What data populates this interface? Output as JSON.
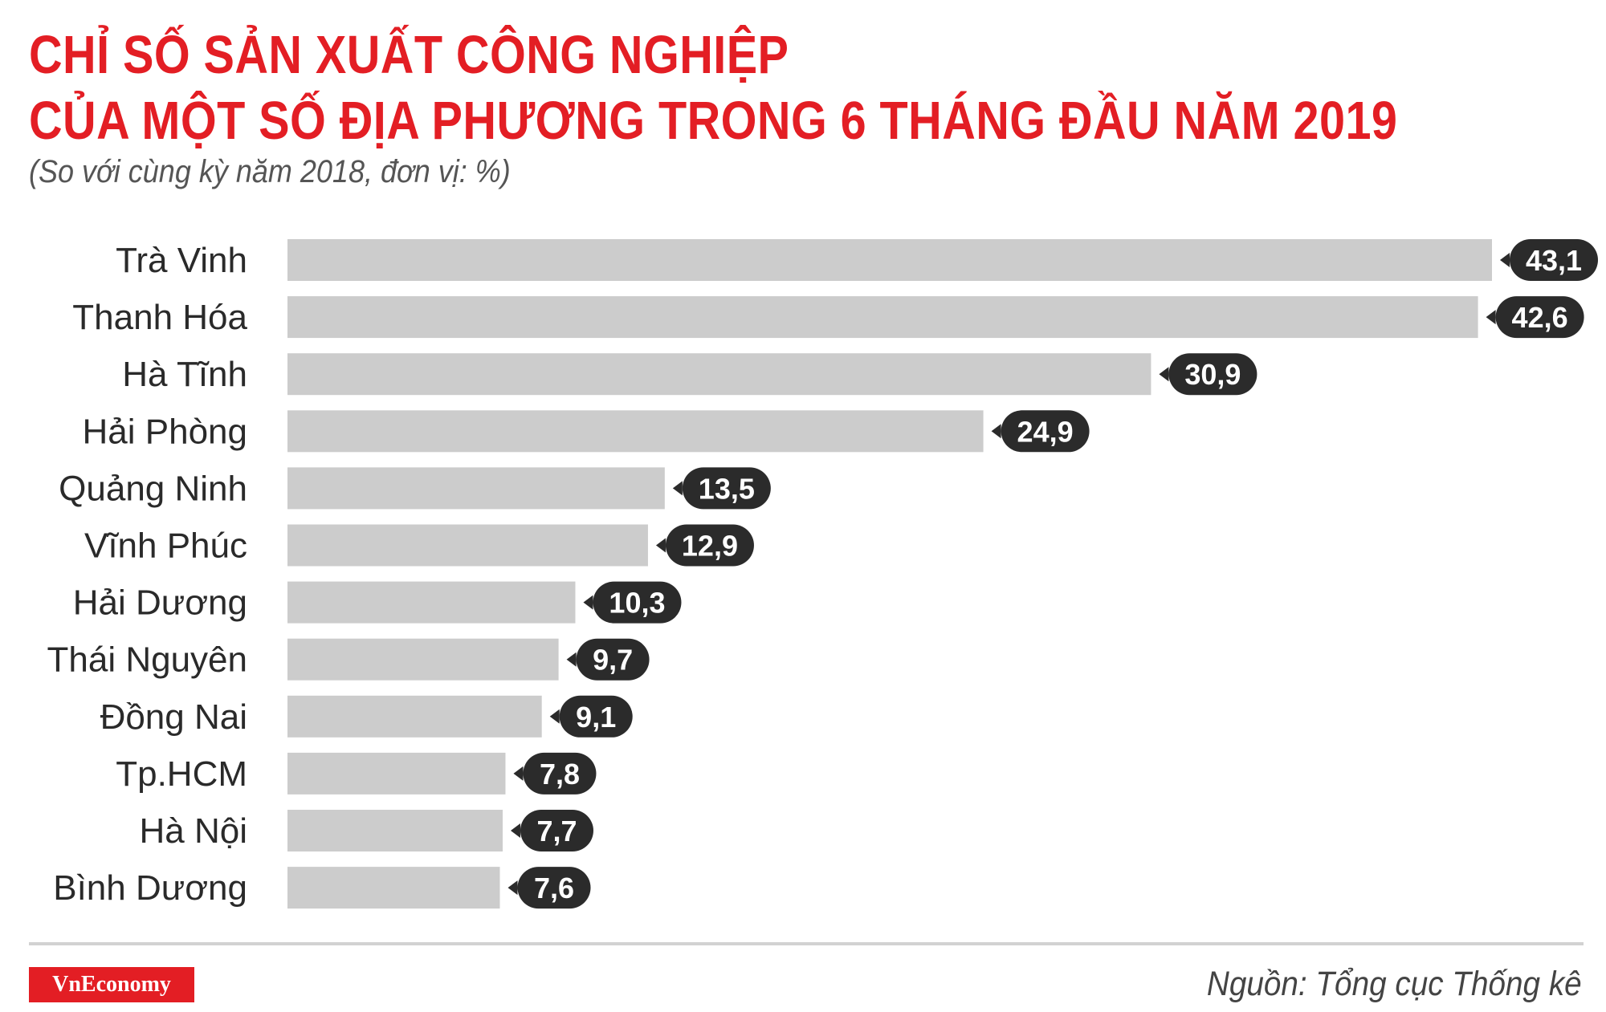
{
  "header": {
    "title_line1": "CHỈ SỐ SẢN XUẤT CÔNG NGHIỆP",
    "title_line2": "CỦA MỘT SỐ ĐỊA PHƯƠNG TRONG 6 THÁNG ĐẦU NĂM 2019",
    "subtitle": "(So với cùng kỳ năm 2018, đơn vị: %)"
  },
  "footer": {
    "brand": "VnEconomy",
    "source": "Nguồn: Tổng cục Thống kê"
  },
  "colors": {
    "title": "#e31e24",
    "bar": "#cccccc",
    "label_bubble": "#2b2b2b",
    "brand_bg": "#e31e24"
  },
  "chart_data": {
    "type": "bar",
    "orientation": "horizontal",
    "title": "CHỈ SỐ SẢN XUẤT CÔNG NGHIỆP CỦA MỘT SỐ ĐỊA PHƯƠNG TRONG 6 THÁNG ĐẦU NĂM 2019",
    "subtitle": "(So với cùng kỳ năm 2018, đơn vị: %)",
    "categories": [
      "Trà Vinh",
      "Thanh Hóa",
      "Hà Tĩnh",
      "Hải Phòng",
      "Quảng Ninh",
      "Vĩnh Phúc",
      "Hải Dương",
      "Thái Nguyên",
      "Đồng Nai",
      "Tp.HCM",
      "Hà Nội",
      "Bình Dương"
    ],
    "values": [
      43.1,
      42.6,
      30.9,
      24.9,
      13.5,
      12.9,
      10.3,
      9.7,
      9.1,
      7.8,
      7.7,
      7.6
    ],
    "value_labels": [
      "43,1",
      "42,6",
      "30,9",
      "24,9",
      "13,5",
      "12,9",
      "10,3",
      "9,7",
      "9,1",
      "7,8",
      "7,7",
      "7,6"
    ],
    "xlabel": "",
    "ylabel": "",
    "xlim": [
      0,
      43.1
    ],
    "grid": false,
    "legend": "none"
  }
}
